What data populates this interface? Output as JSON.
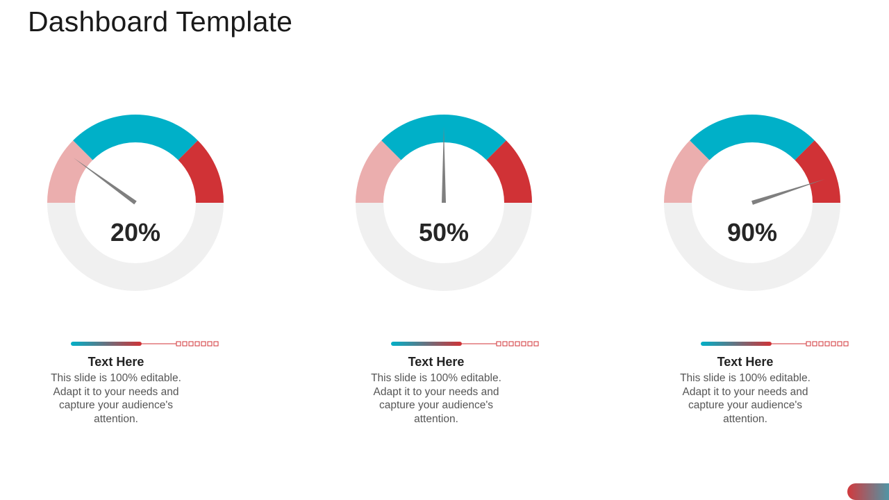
{
  "slide": {
    "title": "Dashboard Template"
  },
  "colors": {
    "segment_low": "#ebaeae",
    "segment_mid": "#00b0c8",
    "segment_high": "#d03236",
    "track": "#f0f0f0",
    "needle": "#7f7f7f"
  },
  "gauges": [
    {
      "value": 20,
      "value_label": "20%",
      "heading": "Text Here",
      "body": "This slide is 100% editable. Adapt it to your needs and capture your audience's attention."
    },
    {
      "value": 50,
      "value_label": "50%",
      "heading": "Text Here",
      "body": "This slide is 100% editable. Adapt it to your needs and capture your audience's attention."
    },
    {
      "value": 90,
      "value_label": "90%",
      "heading": "Text Here",
      "body": "This slide is 100% editable. Adapt it to your needs and capture your audience's attention."
    }
  ]
}
